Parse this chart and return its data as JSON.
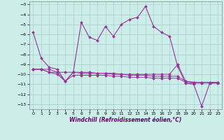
{
  "xlabel": "Windchill (Refroidissement éolien,°C)",
  "ylabel": "",
  "xlim": [
    -0.5,
    23.5
  ],
  "ylim": [
    -13.5,
    -2.7
  ],
  "yticks": [
    -13,
    -12,
    -11,
    -10,
    -9,
    -8,
    -7,
    -6,
    -5,
    -4,
    -3
  ],
  "xticks": [
    0,
    1,
    2,
    3,
    4,
    5,
    6,
    7,
    8,
    9,
    10,
    11,
    12,
    13,
    14,
    15,
    16,
    17,
    18,
    19,
    20,
    21,
    22,
    23
  ],
  "bg_color": "#cceee8",
  "grid_color": "#aacccc",
  "line_color": "#993399",
  "line1_x": [
    0,
    1,
    2,
    3,
    4,
    5,
    6,
    7,
    8,
    9,
    10,
    11,
    12,
    13,
    14,
    15,
    16,
    17,
    18,
    19,
    20,
    21,
    22,
    23
  ],
  "line1_y": [
    -5.8,
    -8.4,
    -9.3,
    -9.5,
    -10.7,
    -9.8,
    -4.8,
    -6.3,
    -6.6,
    -5.2,
    -6.2,
    -5.0,
    -4.5,
    -4.3,
    -3.2,
    -5.2,
    -5.8,
    -6.2,
    -9.2,
    -10.9,
    -11.0,
    -13.2,
    -10.9,
    -10.8
  ],
  "line2_x": [
    0,
    1,
    2,
    3,
    4,
    5,
    6,
    7,
    8,
    9,
    10,
    11,
    12,
    13,
    14,
    15,
    16,
    17,
    18,
    19,
    20,
    21,
    22,
    23
  ],
  "line2_y": [
    -9.5,
    -9.5,
    -9.5,
    -9.8,
    -9.8,
    -9.8,
    -9.8,
    -9.8,
    -9.9,
    -9.9,
    -9.9,
    -10.0,
    -10.0,
    -10.0,
    -10.0,
    -10.0,
    -10.0,
    -10.0,
    -9.0,
    -10.7,
    -10.8,
    -10.8,
    -10.8,
    -10.8
  ],
  "line3_x": [
    0,
    1,
    2,
    3,
    4,
    5,
    6,
    7,
    8,
    9,
    10,
    11,
    12,
    13,
    14,
    15,
    16,
    17,
    18,
    19,
    20,
    21,
    22,
    23
  ],
  "line3_y": [
    -9.5,
    -9.5,
    -9.8,
    -9.8,
    -10.7,
    -9.8,
    -9.9,
    -9.9,
    -9.9,
    -9.9,
    -10.0,
    -10.0,
    -10.1,
    -10.1,
    -10.1,
    -10.2,
    -10.2,
    -10.2,
    -10.2,
    -10.7,
    -10.8,
    -10.8,
    -10.8,
    -10.8
  ],
  "line4_x": [
    0,
    1,
    2,
    3,
    4,
    5,
    6,
    7,
    8,
    9,
    10,
    11,
    12,
    13,
    14,
    15,
    16,
    17,
    18,
    19,
    20,
    21,
    22,
    23
  ],
  "line4_y": [
    -9.5,
    -9.5,
    -9.8,
    -10.0,
    -10.7,
    -10.1,
    -10.1,
    -10.1,
    -10.1,
    -10.1,
    -10.2,
    -10.2,
    -10.3,
    -10.3,
    -10.3,
    -10.4,
    -10.4,
    -10.4,
    -10.4,
    -10.8,
    -10.9,
    -10.9,
    -10.9,
    -10.9
  ]
}
